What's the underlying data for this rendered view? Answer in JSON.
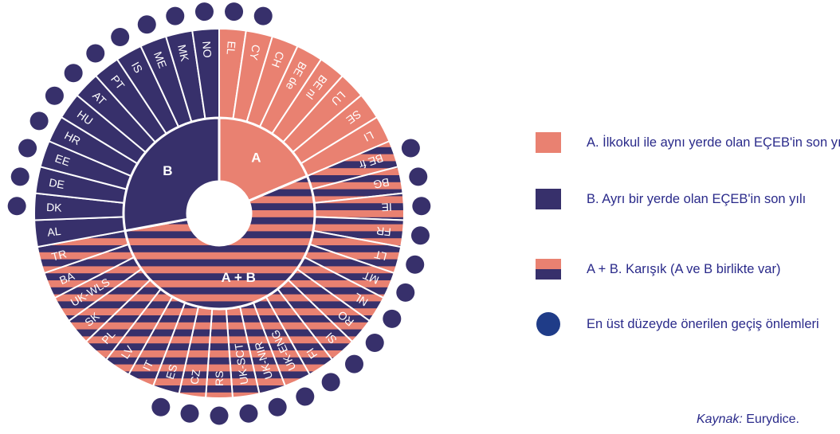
{
  "chart_data": {
    "type": "radial-diagram",
    "categories": {
      "A": {
        "label": "A",
        "countries": [
          "EL",
          "CY",
          "CH",
          "BE de",
          "BE nl",
          "LU",
          "SE",
          "LI"
        ]
      },
      "A+B": {
        "label": "A + B",
        "countries": [
          "BE fr",
          "BG",
          "IE",
          "FR",
          "LT",
          "MT",
          "NL",
          "RO",
          "SI",
          "FI",
          "UK-ENG",
          "UK-NIR",
          "UK-SCT",
          "RS",
          "CZ",
          "ES",
          "IT",
          "LV",
          "PL",
          "SK",
          "UK-WLS",
          "BA",
          "TR"
        ]
      },
      "B": {
        "label": "B",
        "countries": [
          "AL",
          "DK",
          "DE",
          "EE",
          "HR",
          "HU",
          "AT",
          "PT",
          "IS",
          "ME",
          "MK",
          "NO"
        ]
      }
    },
    "countries": [
      {
        "code": "EL",
        "cat": "A",
        "dot": true
      },
      {
        "code": "CY",
        "cat": "A",
        "dot": true
      },
      {
        "code": "CH",
        "cat": "A",
        "dot": false
      },
      {
        "code": "BE de",
        "cat": "A",
        "dot": false
      },
      {
        "code": "BE nl",
        "cat": "A",
        "dot": false
      },
      {
        "code": "LU",
        "cat": "A",
        "dot": false
      },
      {
        "code": "SE",
        "cat": "A",
        "dot": false
      },
      {
        "code": "LI",
        "cat": "A",
        "dot": false
      },
      {
        "code": "BE fr",
        "cat": "A+B",
        "dot": true
      },
      {
        "code": "BG",
        "cat": "A+B",
        "dot": true
      },
      {
        "code": "IE",
        "cat": "A+B",
        "dot": true
      },
      {
        "code": "FR",
        "cat": "A+B",
        "dot": true
      },
      {
        "code": "LT",
        "cat": "A+B",
        "dot": true
      },
      {
        "code": "MT",
        "cat": "A+B",
        "dot": true
      },
      {
        "code": "NL",
        "cat": "A+B",
        "dot": true
      },
      {
        "code": "RO",
        "cat": "A+B",
        "dot": true
      },
      {
        "code": "SI",
        "cat": "A+B",
        "dot": true
      },
      {
        "code": "FI",
        "cat": "A+B",
        "dot": true
      },
      {
        "code": "UK-ENG",
        "cat": "A+B",
        "dot": true
      },
      {
        "code": "UK-NIR",
        "cat": "A+B",
        "dot": true
      },
      {
        "code": "UK-SCT",
        "cat": "A+B",
        "dot": true
      },
      {
        "code": "RS",
        "cat": "A+B",
        "dot": true
      },
      {
        "code": "CZ",
        "cat": "A+B",
        "dot": true
      },
      {
        "code": "ES",
        "cat": "A+B",
        "dot": true
      },
      {
        "code": "IT",
        "cat": "A+B",
        "dot": false
      },
      {
        "code": "LV",
        "cat": "A+B",
        "dot": false
      },
      {
        "code": "PL",
        "cat": "A+B",
        "dot": false
      },
      {
        "code": "SK",
        "cat": "A+B",
        "dot": false
      },
      {
        "code": "UK-WLS",
        "cat": "A+B",
        "dot": false
      },
      {
        "code": "BA",
        "cat": "A+B",
        "dot": false
      },
      {
        "code": "TR",
        "cat": "A+B",
        "dot": false
      },
      {
        "code": "AL",
        "cat": "B",
        "dot": false
      },
      {
        "code": "DK",
        "cat": "B",
        "dot": true
      },
      {
        "code": "DE",
        "cat": "B",
        "dot": true
      },
      {
        "code": "EE",
        "cat": "B",
        "dot": true
      },
      {
        "code": "HR",
        "cat": "B",
        "dot": true
      },
      {
        "code": "HU",
        "cat": "B",
        "dot": true
      },
      {
        "code": "AT",
        "cat": "B",
        "dot": true
      },
      {
        "code": "PT",
        "cat": "B",
        "dot": true
      },
      {
        "code": "IS",
        "cat": "B",
        "dot": true
      },
      {
        "code": "ME",
        "cat": "B",
        "dot": true
      },
      {
        "code": "MK",
        "cat": "B",
        "dot": true
      },
      {
        "code": "NO",
        "cat": "B",
        "dot": true
      }
    ],
    "colors": {
      "A": "#e98171",
      "B": "#37306b",
      "dot": "#37306b",
      "legend_dot": "#1f3c88"
    }
  },
  "legend": {
    "a_label": "A. İlkokul ile aynı yerde olan EÇEB'in son yılı",
    "b_label": "B. Ayrı bir yerde olan EÇEB'in son yılı",
    "mixed_label": "A + B. Karışık (A ve B birlikte var)",
    "dot_label": "En üst düzeyde önerilen geçiş önlemleri"
  },
  "source": {
    "prefix": "Kaynak:",
    "name": "Eurydice."
  }
}
